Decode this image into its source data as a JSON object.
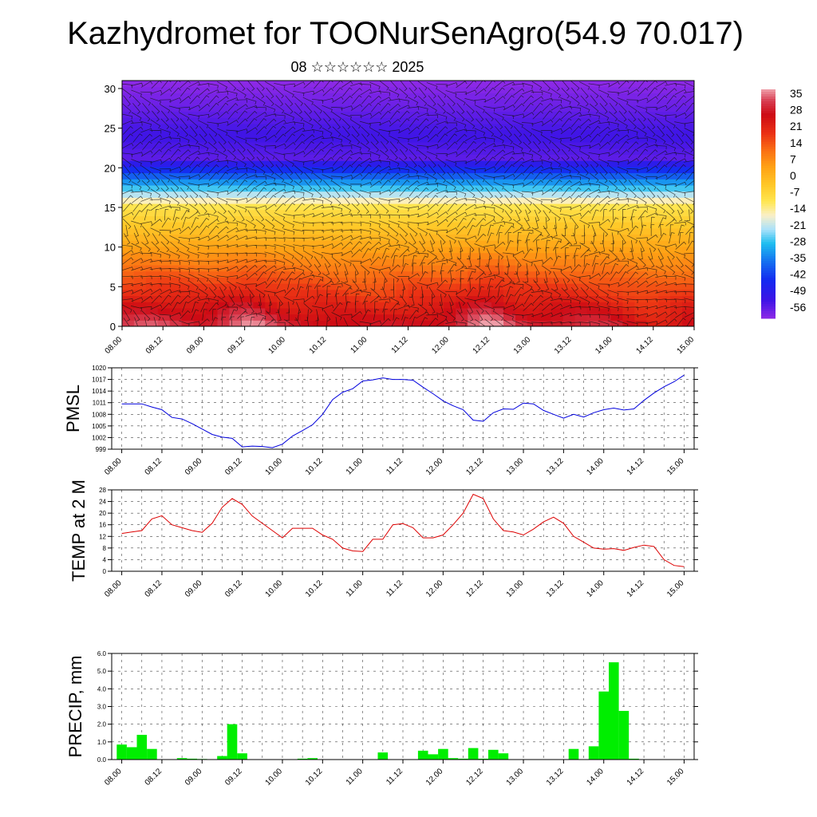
{
  "title": "Kazhydromet for TOONurSenAgro(54.9 70.017)",
  "subtitle": "08 ☆☆☆☆☆☆ 2025",
  "x_tick_labels": [
    "08.00",
    "08.12",
    "09.00",
    "09.12",
    "10.00",
    "10.12",
    "11.00",
    "11.12",
    "12.00",
    "12.12",
    "13.00",
    "13.12",
    "14.00",
    "14.12",
    "15.00"
  ],
  "colorbar": {
    "labels": [
      "35",
      "28",
      "21",
      "14",
      "7",
      "0",
      "-7",
      "-14",
      "-21",
      "-28",
      "-35",
      "-42",
      "-49",
      "-56"
    ]
  },
  "chart_data": [
    {
      "type": "heatmap",
      "description_key": "vertical cross-section",
      "ylim": [
        0,
        31
      ],
      "y_ticks": [
        0,
        5,
        10,
        15,
        20,
        25,
        30
      ],
      "x": [
        "08.00",
        "08.12",
        "09.00",
        "09.12",
        "10.00",
        "10.12",
        "11.00",
        "11.12",
        "12.00",
        "12.12",
        "13.00",
        "13.12",
        "14.00",
        "14.12",
        "15.00"
      ],
      "color_range": [
        -60,
        38
      ],
      "grid": false
    },
    {
      "type": "line",
      "ylabel": "PMSL",
      "ylim": [
        999,
        1020
      ],
      "y_ticks": [
        999,
        1002,
        1005,
        1008,
        1011,
        1014,
        1017,
        1020
      ],
      "xlim_hours": [
        -3,
        171
      ],
      "grid": true,
      "series": [
        {
          "color": "#0000dd",
          "x_hours": [
            0,
            6,
            9,
            12,
            15,
            18,
            21,
            24,
            27,
            30,
            33,
            36,
            39,
            42,
            45,
            48,
            51,
            54,
            57,
            60,
            63,
            66,
            69,
            72,
            75,
            78,
            81,
            84,
            87,
            90,
            93,
            96,
            99,
            102,
            105,
            108,
            111,
            114,
            117,
            120,
            123,
            126,
            129,
            132,
            135,
            138,
            141,
            144,
            147,
            150,
            153,
            156,
            159,
            162,
            165,
            168
          ],
          "values": [
            1010.7,
            1010.7,
            1009.9,
            1009.2,
            1007.2,
            1006.8,
            1005.6,
            1004.2,
            1002.8,
            1002.1,
            1001.8,
            999.6,
            999.8,
            999.7,
            999.4,
            1000.3,
            1002.4,
            1003.8,
            1005.3,
            1008.0,
            1011.8,
            1013.7,
            1014.6,
            1016.6,
            1016.9,
            1017.4,
            1017.0,
            1017.0,
            1016.8,
            1015.0,
            1013.3,
            1011.5,
            1010.2,
            1009.2,
            1006.5,
            1006.2,
            1008.4,
            1009.4,
            1009.3,
            1010.9,
            1010.7,
            1009.0,
            1008.0,
            1007.0,
            1008.0,
            1007.3,
            1008.4,
            1009.2,
            1009.6,
            1009.1,
            1009.4,
            1011.6,
            1013.5,
            1015.1,
            1016.4,
            1018.1
          ]
        }
      ]
    },
    {
      "type": "line",
      "ylabel": "TEMP at 2 M",
      "ylim": [
        0,
        28
      ],
      "y_ticks": [
        0,
        4,
        8,
        12,
        16,
        20,
        24,
        28
      ],
      "xlim_hours": [
        -3,
        171
      ],
      "grid": true,
      "series": [
        {
          "color": "#dd0000",
          "x_hours": [
            0,
            3,
            6,
            9,
            12,
            15,
            18,
            21,
            24,
            27,
            30,
            33,
            36,
            39,
            42,
            45,
            48,
            51,
            54,
            57,
            60,
            63,
            66,
            69,
            72,
            75,
            78,
            81,
            84,
            87,
            90,
            93,
            96,
            99,
            102,
            105,
            108,
            111,
            114,
            117,
            120,
            123,
            126,
            129,
            132,
            135,
            138,
            141,
            144,
            147,
            150,
            153,
            156,
            159,
            162,
            165,
            168
          ],
          "values": [
            13.0,
            13.5,
            14.0,
            18.0,
            19.1,
            16.0,
            15.0,
            14.0,
            13.4,
            16.5,
            22.0,
            25.0,
            23.0,
            19.0,
            16.5,
            14.0,
            11.5,
            14.8,
            14.8,
            14.8,
            12.5,
            11.0,
            8.0,
            7.0,
            6.8,
            11.0,
            11.0,
            16.0,
            16.4,
            15.0,
            11.5,
            11.5,
            12.5,
            16.0,
            20.0,
            26.5,
            25.0,
            18.0,
            14.0,
            13.5,
            12.5,
            14.5,
            17.0,
            18.6,
            16.5,
            12.0,
            10.0,
            8.0,
            7.6,
            7.8,
            7.2,
            8.2,
            9.0,
            8.5,
            4.0,
            2.0,
            1.6
          ]
        }
      ]
    },
    {
      "type": "bar",
      "ylabel": "PRECIP, mm",
      "ylim": [
        0,
        6.0
      ],
      "y_ticks": [
        "0.0",
        "1.0",
        "2.0",
        "3.0",
        "4.0",
        "5.0",
        "6.0"
      ],
      "xlim_hours": [
        -3,
        171
      ],
      "grid": true,
      "color": "#00ee00",
      "x_hours": [
        0,
        3,
        6,
        9,
        18,
        21,
        24,
        30,
        33,
        36,
        54,
        57,
        78,
        90,
        93,
        96,
        99,
        102,
        105,
        108,
        111,
        114,
        135,
        141,
        144,
        147,
        150,
        153
      ],
      "values": [
        0.85,
        0.7,
        1.4,
        0.6,
        0.08,
        0.05,
        0.03,
        0.2,
        2.0,
        0.35,
        0.05,
        0.08,
        0.4,
        0.5,
        0.3,
        0.6,
        0.08,
        0.05,
        0.65,
        0.05,
        0.55,
        0.35,
        0.6,
        0.75,
        3.85,
        5.5,
        2.75,
        0.05
      ]
    }
  ]
}
